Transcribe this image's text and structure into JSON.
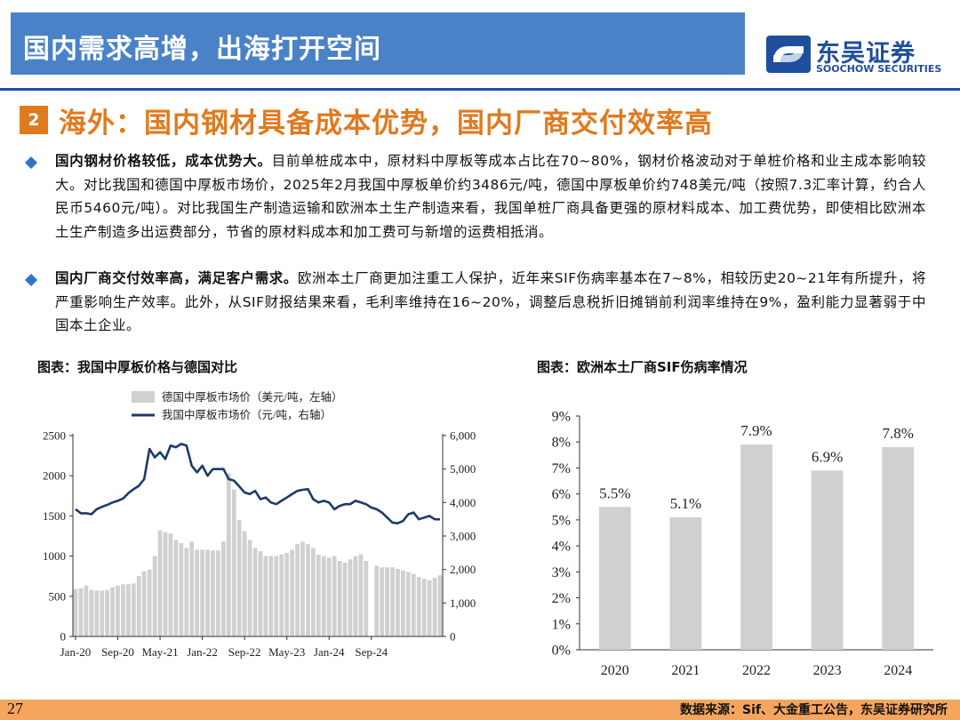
{
  "header": {
    "title": "国内需求高增，出海打开空间",
    "brand_name": "东吴证券",
    "brand_sub": "SOOCHOW SECURITIES"
  },
  "section": {
    "number": "2",
    "heading": "海外：国内钢材具备成本优势，国内厂商交付效率高"
  },
  "bullets": [
    {
      "bold": "国内钢材价格较低，成本优势大。",
      "text": "目前单桩成本中，原材料中厚板等成本占比在70~80%，钢材价格波动对于单桩价格和业主成本影响较大。对比我国和德国中厚板市场价，2025年2月我国中厚板单价约3486元/吨，德国中厚板单价约748美元/吨（按照7.3汇率计算，约合人民币5460元/吨）。对比我国生产制造运输和欧洲本土生产制造来看，我国单桩厂商具备更强的原材料成本、加工费优势，即使相比欧洲本土生产制造多出运费部分，节省的原材料成本和加工费可与新增的运费相抵消。"
    },
    {
      "bold": "国内厂商交付效率高，满足客户需求。",
      "text": "欧洲本土厂商更加注重工人保护，近年来SIF伤病率基本在7~8%，相较历史20~21年有所提升，将严重影响生产效率。此外，从SIF财报结果来看，毛利率维持在16~20%，调整后息税折旧摊销前利润率维持在9%，盈利能力显著弱于中国本土企业。"
    }
  ],
  "charts": {
    "left_title": "图表：我国中厚板价格与德国对比",
    "right_title": "图表：欧洲本土厂商SIF伤病率情况"
  },
  "footer": {
    "page": "27",
    "source": "数据来源：Sif、大金重工公告，东吴证券研究所"
  },
  "colors": {
    "title_bar": "#4a82c8",
    "brand": "#1f4e9c",
    "accent_orange": "#e07a1f",
    "footer": "#f6a55e",
    "bar_gray": "#d0d0d0",
    "line_navy": "#1c3a6b"
  },
  "chart_data": [
    {
      "type": "bar+line",
      "legend": [
        "德国中厚板市场价（美元/吨，左轴）",
        "我国中厚板市场价（元/吨，右轴）"
      ],
      "x_tick_labels": [
        "Jan-20",
        "Sep-20",
        "May-21",
        "Jan-22",
        "Sep-22",
        "May-23",
        "Jan-24",
        "Sep-24"
      ],
      "y_left": {
        "ticks": [
          "0",
          "500",
          "1000",
          "1500",
          "2000",
          "2500"
        ],
        "range": [
          0,
          2500
        ]
      },
      "y_right": {
        "ticks": [
          "0",
          "1,000",
          "2,000",
          "3,000",
          "4,000",
          "5,000",
          "6,000"
        ],
        "range": [
          0,
          6000
        ]
      },
      "series": [
        {
          "name": "德国中厚板市场价（美元/吨，左轴）",
          "kind": "bar",
          "values": [
            590,
            600,
            630,
            580,
            570,
            570,
            580,
            610,
            630,
            650,
            650,
            660,
            750,
            810,
            830,
            1000,
            1320,
            1300,
            1280,
            1200,
            1160,
            1100,
            1180,
            1080,
            1080,
            1080,
            1070,
            1070,
            1180,
            2030,
            1830,
            1450,
            1310,
            1200,
            1100,
            1060,
            1000,
            1000,
            1000,
            1020,
            1040,
            1080,
            1150,
            1180,
            1150,
            1100,
            1020,
            1000,
            980,
            1000,
            940,
            920,
            960,
            1000,
            1020,
            940,
            null,
            880,
            860,
            860,
            860,
            840,
            820,
            800,
            780,
            740,
            720,
            700,
            730,
            760
          ]
        },
        {
          "name": "我国中厚板市场价（元/吨，右轴）",
          "kind": "line",
          "values": [
            3800,
            3680,
            3680,
            3650,
            3800,
            3870,
            3930,
            4000,
            4050,
            4120,
            4280,
            4400,
            4500,
            4700,
            5600,
            5350,
            5500,
            5300,
            5700,
            5650,
            5750,
            5700,
            5100,
            4900,
            5100,
            4800,
            5000,
            5000,
            5000,
            4700,
            4650,
            4480,
            4300,
            4250,
            4350,
            4100,
            4150,
            4000,
            3950,
            4050,
            4150,
            4250,
            4350,
            4380,
            4400,
            4100,
            4000,
            4050,
            4000,
            3800,
            3900,
            3950,
            3950,
            4050,
            4000,
            3950,
            3850,
            3800,
            3700,
            3550,
            3400,
            3380,
            3450,
            3650,
            3700,
            3500,
            3550,
            3600,
            3500,
            3500
          ]
        }
      ]
    },
    {
      "type": "bar",
      "categories": [
        "2020",
        "2021",
        "2022",
        "2023",
        "2024"
      ],
      "values": [
        5.5,
        5.1,
        7.9,
        6.9,
        7.8
      ],
      "value_labels": [
        "5.5%",
        "5.1%",
        "7.9%",
        "6.9%",
        "7.8%"
      ],
      "y_ticks": [
        "0%",
        "1%",
        "2%",
        "3%",
        "4%",
        "5%",
        "6%",
        "7%",
        "8%",
        "9%"
      ],
      "ylim": [
        0,
        9
      ]
    }
  ]
}
